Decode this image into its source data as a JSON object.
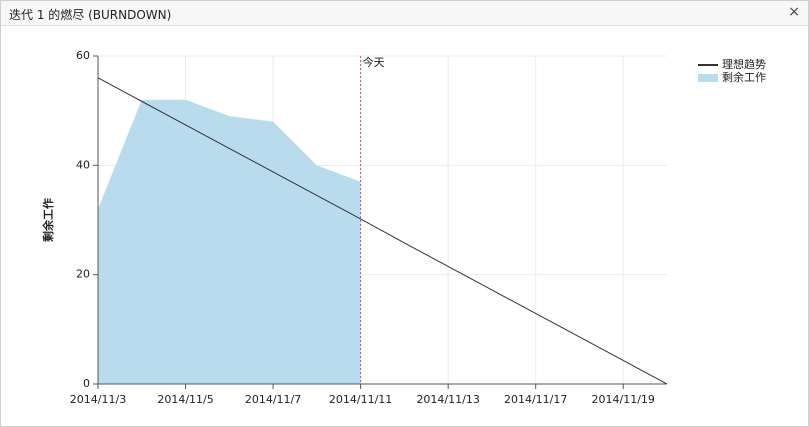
{
  "window": {
    "title": "迭代 1 的燃尽 (BURNDOWN)",
    "close": "×"
  },
  "chart_data": {
    "type": "area-line",
    "ylabel": "剩余工作",
    "categories": [
      "2014/11/3",
      null,
      "2014/11/5",
      null,
      "2014/11/7",
      null,
      "2014/11/11",
      null,
      "2014/11/13",
      null,
      "2014/11/17",
      null,
      "2014/11/19",
      null
    ],
    "series": [
      {
        "name": "理想趋势",
        "kind": "line",
        "color": "#333333",
        "values": [
          56,
          51.7,
          47.4,
          43.1,
          38.8,
          34.5,
          30.2,
          25.8,
          21.5,
          17.2,
          12.9,
          8.6,
          4.3,
          0
        ]
      },
      {
        "name": "剩余工作",
        "kind": "area",
        "color": "#b8dcee",
        "values": [
          32,
          52,
          52,
          49,
          48,
          40,
          37,
          null,
          null,
          null,
          null,
          null,
          null,
          null
        ]
      }
    ],
    "annotations": [
      {
        "label": "今天",
        "category": "2014/11/11",
        "color": "#d9534f"
      }
    ],
    "ylim": [
      0,
      60
    ],
    "yticks": [
      0,
      20,
      40,
      60
    ],
    "grid": true,
    "legend": "top-right"
  }
}
